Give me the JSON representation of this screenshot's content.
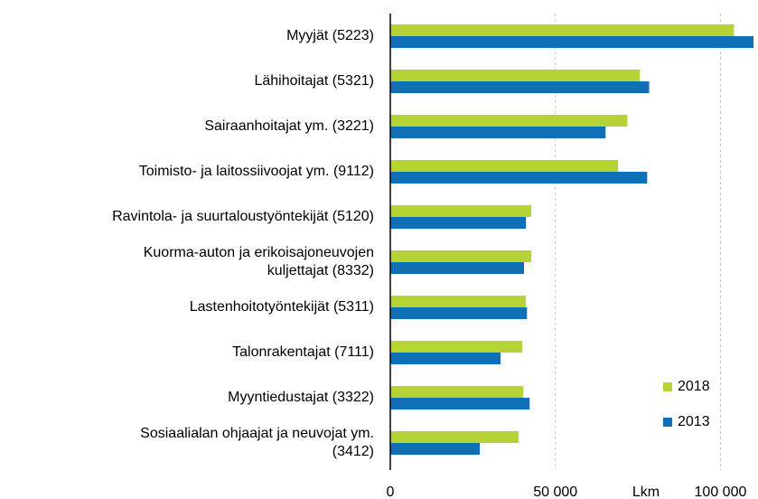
{
  "chart_data": {
    "type": "barh",
    "categories": [
      "Myyjät (5223)",
      "Lähihoitajat (5321)",
      "Sairaanhoitajat ym. (3221)",
      "Toimisto- ja laitossiivoojat ym. (9112)",
      "Ravintola- ja suurtaloustyöntekijät (5120)",
      "Kuorma-auton ja erikoisajoneuvojen\nkuljettajat (8332)",
      "Lastenhoitotyöntekijät (5311)",
      "Talonrakentajat (7111)",
      "Myyntiedustajat (3322)",
      "Sosiaalialan ohjaajat ja neuvojat ym.\n(3412)"
    ],
    "series": [
      {
        "name": "2018",
        "color": "#b5d334",
        "values": [
          104100,
          75600,
          71800,
          69000,
          42700,
          42700,
          41100,
          40000,
          40300,
          38900
        ]
      },
      {
        "name": "2013",
        "color": "#0f6fb7",
        "values": [
          110000,
          78400,
          65200,
          77800,
          41100,
          40500,
          41400,
          33400,
          42200,
          27100
        ]
      }
    ],
    "xlabel": "Lkm",
    "xlim": [
      0,
      110000
    ],
    "xticks": [
      0,
      {
        "value": 50000,
        "label": "50 000"
      },
      {
        "value": 100000,
        "label": "100 000"
      }
    ],
    "grid": true,
    "legend": "lower-right"
  }
}
